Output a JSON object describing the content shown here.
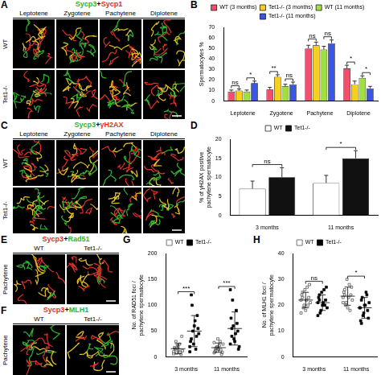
{
  "image_panels": [
    {
      "letter": "A",
      "title": "Sycp3+Sycp1",
      "colors": [
        "#2fb52f",
        "#e0302a"
      ],
      "columns": [
        "Leptotene",
        "Zygotene",
        "Pachytene",
        "Diplotene"
      ],
      "rows": [
        "WT",
        "Tet1-/-"
      ]
    },
    {
      "letter": "C",
      "title": "Sycp3+γH2AX",
      "colors": [
        "#2fb52f",
        "#e0302a"
      ],
      "columns": [
        "Leptotene",
        "Zygotene",
        "Pachytene",
        "Diplotene"
      ],
      "rows": [
        "WT",
        "Tet1-/-"
      ]
    },
    {
      "letter": "E",
      "title": "Sycp3+Rad51",
      "colors": [
        "#e0302a",
        "#2fb52f"
      ],
      "columns": [
        "WT",
        "Tet1-/-"
      ],
      "rows": [
        "Pachytene"
      ]
    },
    {
      "letter": "F",
      "title": "Sycp3+MLH1",
      "colors": [
        "#e0302a",
        "#2fb52f"
      ],
      "columns": [
        "WT",
        "Tet1-/-"
      ],
      "rows": [
        "Pachytene"
      ]
    }
  ],
  "chart_data": [
    {
      "letter": "B",
      "type": "bar",
      "ylabel": "Spermatocytes %",
      "categories": [
        "Leptotene",
        "Zygotene",
        "Pachytene",
        "Diplotene"
      ],
      "series": [
        {
          "name": "WT (3 months)",
          "color": "#f0506e",
          "values": [
            9,
            11,
            50,
            31
          ],
          "errors": [
            1.5,
            2,
            3,
            3
          ]
        },
        {
          "name": "Tet1-/- (3 months)",
          "color": "#f5d020",
          "values": [
            10,
            23,
            53,
            16
          ],
          "errors": [
            1.5,
            2,
            3,
            3
          ]
        },
        {
          "name": "WT (11 months)",
          "color": "#9ee03c",
          "values": [
            9,
            14,
            49,
            22
          ],
          "errors": [
            1.5,
            2,
            3,
            2
          ]
        },
        {
          "name": "Tet1-/- (11 months)",
          "color": "#3a56e6",
          "values": [
            17,
            16,
            55,
            12
          ],
          "errors": [
            2,
            2,
            3,
            2
          ]
        }
      ],
      "ylim": [
        0,
        70
      ],
      "yticks": [
        0,
        10,
        20,
        30,
        40,
        50,
        60,
        70
      ],
      "grid": false,
      "legend": "top",
      "annotations": [
        {
          "category": "Leptotene",
          "between": [
            "WT (3 months)",
            "Tet1-/- (3 months)"
          ],
          "text": "ns"
        },
        {
          "category": "Leptotene",
          "between": [
            "WT (11 months)",
            "Tet1-/- (11 months)"
          ],
          "text": "*"
        },
        {
          "category": "Zygotene",
          "between": [
            "WT (3 months)",
            "Tet1-/- (3 months)"
          ],
          "text": "**"
        },
        {
          "category": "Zygotene",
          "between": [
            "WT (11 months)",
            "Tet1-/- (11 months)"
          ],
          "text": "ns"
        },
        {
          "category": "Pachytene",
          "between": [
            "WT (3 months)",
            "Tet1-/- (3 months)"
          ],
          "text": "ns"
        },
        {
          "category": "Pachytene",
          "between": [
            "WT (11 months)",
            "Tet1-/- (11 months)"
          ],
          "text": "ns"
        },
        {
          "category": "Diplotene",
          "between": [
            "WT (3 months)",
            "Tet1-/- (3 months)"
          ],
          "text": "*"
        },
        {
          "category": "Diplotene",
          "between": [
            "WT (11 months)",
            "Tet1-/- (11 months)"
          ],
          "text": "*"
        }
      ]
    },
    {
      "letter": "D",
      "type": "bar",
      "ylabel": [
        "% of γH2AX positive",
        "pachytene spermatocyte"
      ],
      "categories": [
        "3 months",
        "11 months"
      ],
      "series": [
        {
          "name": "WT",
          "color": "#ffffff",
          "values": [
            7,
            8.5
          ],
          "errors": [
            2,
            2
          ]
        },
        {
          "name": "Tet1-/-",
          "color": "#111111",
          "values": [
            10,
            15
          ],
          "errors": [
            2.5,
            2
          ]
        }
      ],
      "ylim": [
        0,
        20
      ],
      "yticks": [
        0,
        5,
        10,
        15,
        20
      ],
      "grid": false,
      "legend": "top",
      "annotations": [
        {
          "category": "3 months",
          "between": [
            "WT",
            "Tet1-/-"
          ],
          "text": "ns"
        },
        {
          "category": "11 months",
          "between": [
            "WT",
            "Tet1-/-"
          ],
          "text": "*"
        }
      ]
    },
    {
      "letter": "G",
      "type": "scatter",
      "ylabel": [
        "No. of RAD51 foci /",
        "pachytene spermatocyte"
      ],
      "categories": [
        "3 months",
        "11 months"
      ],
      "series": [
        {
          "name": "WT",
          "color": "#555555",
          "marker": "square_open",
          "values": [
            [
              10,
              15,
              8,
              20,
              25,
              5,
              12,
              18,
              30,
              22,
              14,
              9,
              40,
              6,
              16
            ],
            [
              8,
              12,
              20,
              15,
              30,
              5,
              25,
              10,
              18,
              35,
              22,
              14,
              9,
              28,
              16
            ]
          ],
          "mean": [
            16,
            18
          ],
          "sd": [
            10,
            9
          ]
        },
        {
          "name": "Tet1-/-",
          "color": "#000000",
          "marker": "square",
          "values": [
            [
              20,
              35,
              50,
              60,
              15,
              80,
              45,
              30,
              100,
              25,
              70,
              40,
              55,
              10,
              120
            ],
            [
              25,
              40,
              60,
              30,
              90,
              50,
              20,
              75,
              110,
              35,
              45,
              65,
              15,
              130,
              55
            ]
          ],
          "mean": [
            50,
            55
          ],
          "sd": [
            30,
            32
          ]
        }
      ],
      "ylim": [
        0,
        200
      ],
      "yticks": [
        0,
        50,
        100,
        150,
        200
      ],
      "grid": false,
      "legend": "top",
      "annotations": [
        {
          "category": "3 months",
          "between": [
            "WT",
            "Tet1-/-"
          ],
          "text": "***"
        },
        {
          "category": "11 months",
          "between": [
            "WT",
            "Tet1-/-"
          ],
          "text": "***"
        }
      ]
    },
    {
      "letter": "H",
      "type": "scatter",
      "ylabel": [
        "No. of MLH1 foci /",
        "pachytene spermatocyte"
      ],
      "categories": [
        "3 months",
        "11 months"
      ],
      "series": [
        {
          "name": "WT",
          "color": "#555555",
          "marker": "square_open",
          "values": [
            [
              22,
              25,
              20,
              18,
              27,
              23,
              21,
              24,
              19,
              26,
              22,
              20,
              28,
              17,
              23
            ],
            [
              23,
              26,
              21,
              19,
              28,
              24,
              22,
              25,
              20,
              30,
              23,
              18,
              27,
              21,
              24
            ]
          ],
          "mean": [
            22,
            23.5
          ],
          "sd": [
            3,
            3.5
          ]
        },
        {
          "name": "Tet1-/-",
          "color": "#000000",
          "marker": "square",
          "values": [
            [
              21,
              24,
              18,
              20,
              26,
              22,
              19,
              23,
              17,
              25,
              21,
              20,
              27,
              16,
              22
            ],
            [
              19,
              22,
              16,
              20,
              25,
              18,
              21,
              14,
              23,
              17,
              20,
              24,
              15,
              19,
              13
            ]
          ],
          "mean": [
            21,
            19
          ],
          "sd": [
            3,
            4
          ]
        }
      ],
      "ylim": [
        0,
        40
      ],
      "yticks": [
        0,
        10,
        20,
        30,
        40
      ],
      "grid": false,
      "legend": "top",
      "annotations": [
        {
          "category": "3 months",
          "between": [
            "WT",
            "Tet1-/-"
          ],
          "text": "ns"
        },
        {
          "category": "11 months",
          "between": [
            "WT",
            "Tet1-/-"
          ],
          "text": "*"
        }
      ]
    }
  ]
}
